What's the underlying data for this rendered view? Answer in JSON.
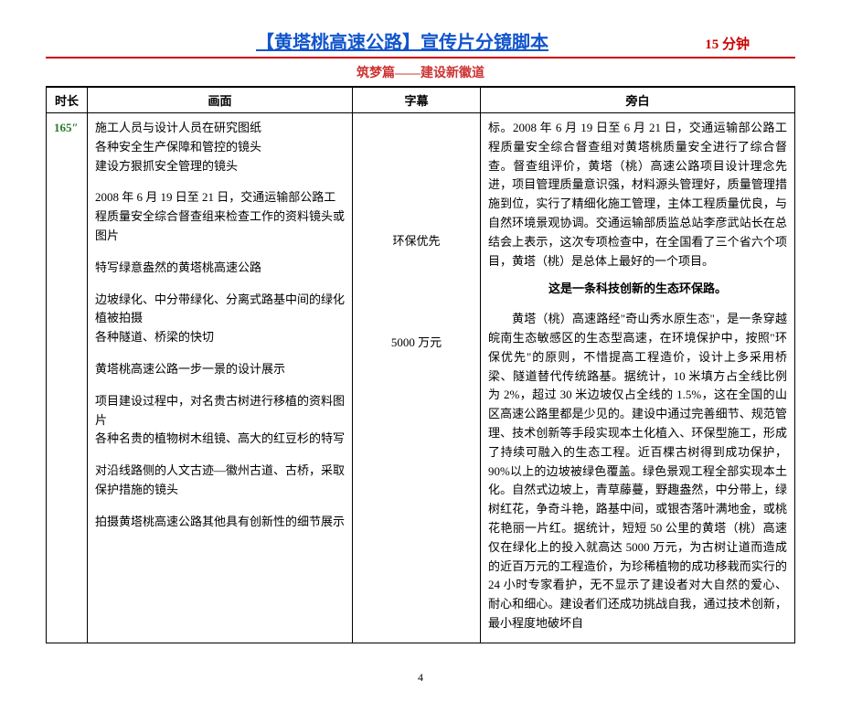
{
  "header": {
    "title_bracket": "【黄塔桃高速公路】",
    "title_suffix": "宣传片分镜脚本",
    "duration": "15 分钟"
  },
  "section_title": "筑梦篇——建设新徽道",
  "table_headers": {
    "duration": "时长",
    "scene": "画面",
    "subtitle": "字幕",
    "narration": "旁白"
  },
  "row": {
    "duration": "165″",
    "scene": {
      "block1_l1": "施工人员与设计人员在研究图纸",
      "block1_l2": "各种安全生产保障和管控的镜头",
      "block1_l3": "建设方狠抓安全管理的镜头",
      "block2": "2008 年 6 月 19 日至 21 日，交通运输部公路工程质量安全综合督查组来检查工作的资料镜头或图片",
      "block3": "特写绿意盎然的黄塔桃高速公路",
      "block4_l1": "边坡绿化、中分带绿化、分离式路基中间的绿化植被拍摄",
      "block4_l2": "各种隧道、桥梁的快切",
      "block5": "黄塔桃高速公路一步一景的设计展示",
      "block6_l1": "项目建设过程中，对名贵古树进行移植的资料图片",
      "block6_l2": "各种名贵的植物树木组镜、高大的红豆杉的特写",
      "block7": "对沿线路侧的人文古迹—徽州古道、古桥，采取保护措施的镜头",
      "block8": "拍摄黄塔桃高速公路其他具有创新性的细节展示"
    },
    "subtitle": {
      "line1": "环保优先",
      "line2": "5000 万元"
    },
    "narration": {
      "para1": "标。2008 年 6 月 19 日至 6 月 21 日，交通运输部公路工程质量安全综合督查组对黄塔桃质量安全进行了综合督查。督查组评价，黄塔（桃）高速公路项目设计理念先进，项目管理质量意识强，材料源头管理好，质量管理措施到位，实行了精细化施工管理，主体工程质量优良，与自然环境景观协调。交通运输部质监总站李彦武站长在总结会上表示，这次专项检查中，在全国看了三个省六个项目，黄塔（桃）是总体上最好的一个项目。",
      "title": "这是一条科技创新的生态环保路。",
      "para2": "黄塔（桃）高速路经\"奇山秀水原生态\"，是一条穿越皖南生态敏感区的生态型高速，在环境保护中，按照\"环保优先\"的原则，不惜提高工程造价，设计上多采用桥梁、隧道替代传统路基。据统计，10 米填方占全线比例为 2%，超过 30 米边坡仅占全线的 1.5%，这在全国的山区高速公路里都是少见的。建设中通过完善细节、规范管理、技术创新等手段实现本土化植入、环保型施工，形成了持续可融入的生态工程。近百棵古树得到成功保护，90%以上的边坡被绿色覆盖。绿色景观工程全部实现本土化。自然式边坡上，青草藤蔓，野趣盎然，中分带上，绿树红花，争奇斗艳，路基中间，或银杏落叶满地金，或桃花艳丽一片红。据统计，短短 50 公里的黄塔（桃）高速仅在绿化上的投入就高达 5000 万元，为古树让道而造成的近百万元的工程造价，为珍稀植物的成功移栽而实行的 24 小时专家看护，无不显示了建设者对大自然的爱心、耐心和细心。建设者们还成功挑战自我，通过技术创新，最小程度地破坏自"
    }
  },
  "page_number": "4",
  "colors": {
    "title_blue": "#1155cc",
    "rule_red": "#cc0000",
    "section_red": "#cc3333",
    "duration_green": "#2a7a2a"
  }
}
